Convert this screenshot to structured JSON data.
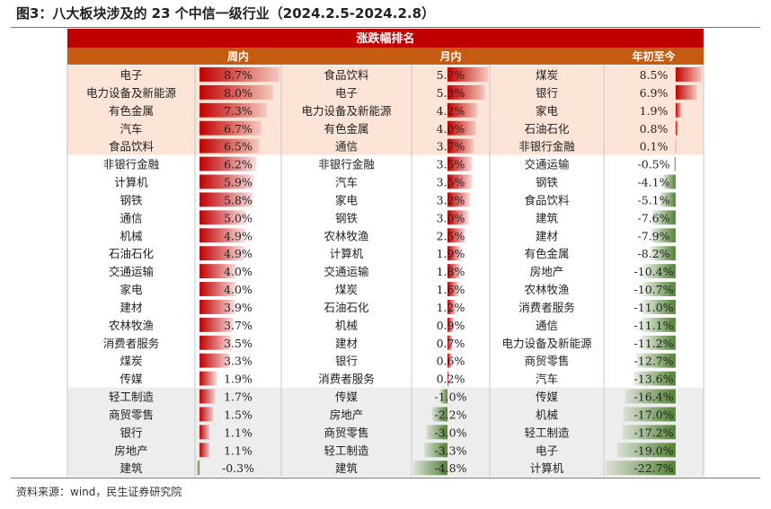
{
  "figure_title": "图3：八大板块涉及的 23 个中信一级行业（2024.2.5-2024.2.8）",
  "source": "资料来源：wind，民生证券研究院",
  "colors": {
    "header_red": "#c00000",
    "subheader_orange": "#c55a11",
    "top_group_bg": "#fce4d6",
    "bottom_group_bg": "#ededed",
    "bar_positive": "#c00000",
    "bar_negative": "#548235"
  },
  "chart_data": {
    "type": "table",
    "title": "涨跌幅排名",
    "columns": [
      "周内",
      "月内",
      "年初至今"
    ],
    "rows": [
      {
        "weekly_industry": "电子",
        "weekly": "8.7%",
        "monthly_industry": "食品饮料",
        "monthly": "5.7%",
        "ytd_industry": "煤炭",
        "ytd": "8.5%"
      },
      {
        "weekly_industry": "电力设备及新能源",
        "weekly": "8.0%",
        "monthly_industry": "电子",
        "monthly": "5.3%",
        "ytd_industry": "银行",
        "ytd": "6.9%"
      },
      {
        "weekly_industry": "有色金属",
        "weekly": "7.3%",
        "monthly_industry": "电力设备及新能源",
        "monthly": "4.2%",
        "ytd_industry": "家电",
        "ytd": "1.9%"
      },
      {
        "weekly_industry": "汽车",
        "weekly": "6.7%",
        "monthly_industry": "有色金属",
        "monthly": "4.0%",
        "ytd_industry": "石油石化",
        "ytd": "0.8%"
      },
      {
        "weekly_industry": "食品饮料",
        "weekly": "6.5%",
        "monthly_industry": "通信",
        "monthly": "3.7%",
        "ytd_industry": "非银行金融",
        "ytd": "0.1%"
      },
      {
        "weekly_industry": "非银行金融",
        "weekly": "6.2%",
        "monthly_industry": "非银行金融",
        "monthly": "3.5%",
        "ytd_industry": "交通运输",
        "ytd": "-0.5%"
      },
      {
        "weekly_industry": "计算机",
        "weekly": "5.9%",
        "monthly_industry": "汽车",
        "monthly": "3.5%",
        "ytd_industry": "钢铁",
        "ytd": "-4.1%"
      },
      {
        "weekly_industry": "钢铁",
        "weekly": "5.8%",
        "monthly_industry": "家电",
        "monthly": "3.2%",
        "ytd_industry": "食品饮料",
        "ytd": "-5.1%"
      },
      {
        "weekly_industry": "通信",
        "weekly": "5.0%",
        "monthly_industry": "钢铁",
        "monthly": "3.0%",
        "ytd_industry": "建筑",
        "ytd": "-7.6%"
      },
      {
        "weekly_industry": "机械",
        "weekly": "4.9%",
        "monthly_industry": "农林牧渔",
        "monthly": "2.5%",
        "ytd_industry": "建材",
        "ytd": "-7.9%"
      },
      {
        "weekly_industry": "石油石化",
        "weekly": "4.9%",
        "monthly_industry": "计算机",
        "monthly": "1.9%",
        "ytd_industry": "有色金属",
        "ytd": "-8.2%"
      },
      {
        "weekly_industry": "交通运输",
        "weekly": "4.0%",
        "monthly_industry": "交通运输",
        "monthly": "1.8%",
        "ytd_industry": "房地产",
        "ytd": "-10.4%"
      },
      {
        "weekly_industry": "家电",
        "weekly": "4.0%",
        "monthly_industry": "煤炭",
        "monthly": "1.6%",
        "ytd_industry": "农林牧渔",
        "ytd": "-10.7%"
      },
      {
        "weekly_industry": "建材",
        "weekly": "3.9%",
        "monthly_industry": "石油石化",
        "monthly": "1.2%",
        "ytd_industry": "消费者服务",
        "ytd": "-11.0%"
      },
      {
        "weekly_industry": "农林牧渔",
        "weekly": "3.7%",
        "monthly_industry": "机械",
        "monthly": "0.9%",
        "ytd_industry": "通信",
        "ytd": "-11.1%"
      },
      {
        "weekly_industry": "消费者服务",
        "weekly": "3.5%",
        "monthly_industry": "建材",
        "monthly": "0.7%",
        "ytd_industry": "电力设备及新能源",
        "ytd": "-11.2%"
      },
      {
        "weekly_industry": "煤炭",
        "weekly": "3.3%",
        "monthly_industry": "银行",
        "monthly": "0.6%",
        "ytd_industry": "商贸零售",
        "ytd": "-12.7%"
      },
      {
        "weekly_industry": "传媒",
        "weekly": "1.9%",
        "monthly_industry": "消费者服务",
        "monthly": "0.2%",
        "ytd_industry": "汽车",
        "ytd": "-13.6%"
      },
      {
        "weekly_industry": "轻工制造",
        "weekly": "1.7%",
        "monthly_industry": "传媒",
        "monthly": "-1.0%",
        "ytd_industry": "传媒",
        "ytd": "-16.4%"
      },
      {
        "weekly_industry": "商贸零售",
        "weekly": "1.5%",
        "monthly_industry": "房地产",
        "monthly": "-2.2%",
        "ytd_industry": "机械",
        "ytd": "-17.0%"
      },
      {
        "weekly_industry": "银行",
        "weekly": "1.1%",
        "monthly_industry": "商贸零售",
        "monthly": "-3.0%",
        "ytd_industry": "轻工制造",
        "ytd": "-17.2%"
      },
      {
        "weekly_industry": "房地产",
        "weekly": "1.1%",
        "monthly_industry": "轻工制造",
        "monthly": "-3.3%",
        "ytd_industry": "电子",
        "ytd": "-19.0%"
      },
      {
        "weekly_industry": "建筑",
        "weekly": "-0.3%",
        "monthly_industry": "建筑",
        "monthly": "-4.8%",
        "ytd_industry": "计算机",
        "ytd": "-22.7%"
      }
    ]
  }
}
